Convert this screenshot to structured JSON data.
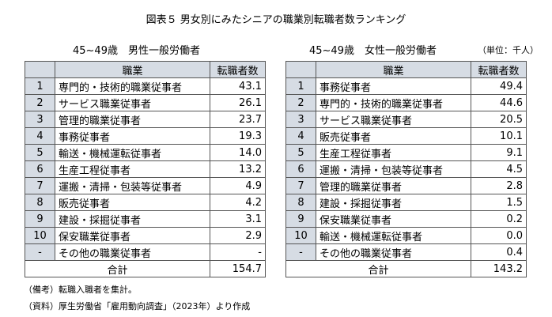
{
  "title": "図表５ 男女別にみたシニアの職業別転職者数ランキング",
  "unit": "（単位：千人）",
  "tables": [
    {
      "subtitle": "45~49歳　男性一般労働者",
      "header": {
        "occupation": "職業",
        "value": "転職者数"
      },
      "rows": [
        {
          "rank": "1",
          "occupation": "専門的・技術的職業従事者",
          "value": "43.1"
        },
        {
          "rank": "2",
          "occupation": "サービス職業従事者",
          "value": "26.1"
        },
        {
          "rank": "3",
          "occupation": "管理的職業従事者",
          "value": "23.7"
        },
        {
          "rank": "4",
          "occupation": "事務従事者",
          "value": "19.3"
        },
        {
          "rank": "5",
          "occupation": "輸送・機械運転従事者",
          "value": "14.0"
        },
        {
          "rank": "6",
          "occupation": "生産工程従事者",
          "value": "13.2"
        },
        {
          "rank": "7",
          "occupation": "運搬・清掃・包装等従事者",
          "value": "4.9"
        },
        {
          "rank": "8",
          "occupation": "販売従事者",
          "value": "4.2"
        },
        {
          "rank": "9",
          "occupation": "建設・採掘従事者",
          "value": "3.1"
        },
        {
          "rank": "10",
          "occupation": "保安職業従事者",
          "value": "2.9"
        },
        {
          "rank": "-",
          "occupation": "その他の職業従事者",
          "value": "-"
        }
      ],
      "total": {
        "label": "合計",
        "value": "154.7"
      }
    },
    {
      "subtitle": "45~49歳　女性一般労働者",
      "header": {
        "occupation": "職業",
        "value": "転職者数"
      },
      "rows": [
        {
          "rank": "1",
          "occupation": "事務従事者",
          "value": "49.4"
        },
        {
          "rank": "2",
          "occupation": "専門的・技術的職業従事者",
          "value": "44.6"
        },
        {
          "rank": "3",
          "occupation": "サービス職業従事者",
          "value": "20.5"
        },
        {
          "rank": "4",
          "occupation": "販売従事者",
          "value": "10.1"
        },
        {
          "rank": "5",
          "occupation": "生産工程従事者",
          "value": "9.1"
        },
        {
          "rank": "6",
          "occupation": "運搬・清掃・包装等従事者",
          "value": "4.5"
        },
        {
          "rank": "7",
          "occupation": "管理的職業従事者",
          "value": "2.8"
        },
        {
          "rank": "8",
          "occupation": "建設・採掘従事者",
          "value": "1.5"
        },
        {
          "rank": "9",
          "occupation": "保安職業従事者",
          "value": "0.2"
        },
        {
          "rank": "10",
          "occupation": "輸送・機械運転従事者",
          "value": "0.0"
        },
        {
          "rank": "-",
          "occupation": "その他の職業従事者",
          "value": "0.4"
        }
      ],
      "total": {
        "label": "合計",
        "value": "143.2"
      }
    }
  ],
  "notes": [
    "（備考）転職入職者を集計。",
    "（資料）厚生労働省「雇用動向調査」（2023年）より作成"
  ]
}
